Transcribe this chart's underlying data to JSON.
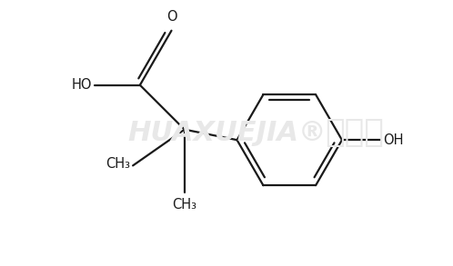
{
  "background_color": "#ffffff",
  "watermark_text1": "HUAXUEJIA",
  "watermark_text2": "化学加",
  "watermark_color": "#e8e8e8",
  "line_color": "#1a1a1a",
  "line_width": 1.6,
  "font_size_label": 10.5,
  "font_size_watermark": 22,
  "xlim": [
    -2.6,
    3.8
  ],
  "ylim": [
    -1.9,
    1.8
  ]
}
